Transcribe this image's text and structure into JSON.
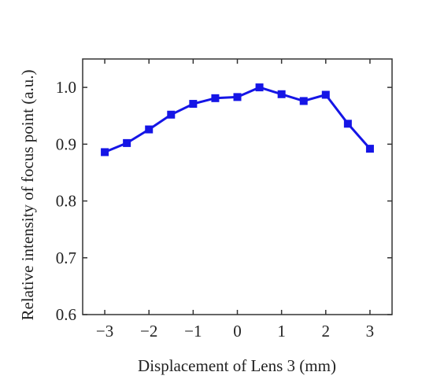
{
  "chart_data": {
    "type": "line",
    "xlabel": "Displacement of Lens 3 (mm)",
    "ylabel": "Relative intensity of focus point (a.u.)",
    "xlim": [
      -3.5,
      3.5
    ],
    "ylim": [
      0.6,
      1.05
    ],
    "x_ticks": [
      -3,
      -2,
      -1,
      0,
      1,
      2,
      3
    ],
    "x_tick_labels": [
      "−3",
      "−2",
      "−1",
      "0",
      "1",
      "2",
      "3"
    ],
    "y_ticks": [
      0.6,
      0.7,
      0.8,
      0.9,
      1.0
    ],
    "y_tick_labels": [
      "0.6",
      "0.7",
      "0.8",
      "0.9",
      "1.0"
    ],
    "grid": false,
    "series": [
      {
        "color": "#1515e6",
        "marker": "square",
        "x": [
          -3,
          -2.5,
          -2,
          -1.5,
          -1,
          -0.5,
          0,
          0.5,
          1,
          1.5,
          2,
          2.5,
          3
        ],
        "y": [
          0.886,
          0.902,
          0.926,
          0.952,
          0.971,
          0.981,
          0.983,
          1.0,
          0.988,
          0.976,
          0.987,
          0.936,
          0.892
        ]
      }
    ]
  }
}
